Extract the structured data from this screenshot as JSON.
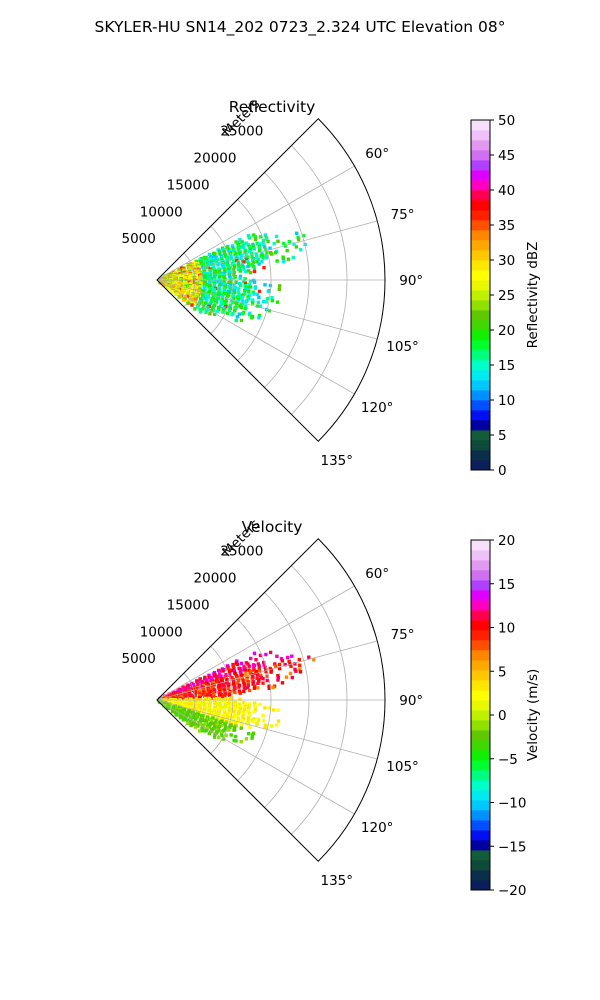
{
  "figure": {
    "suptitle": "SKYLER-HU  SN14_202  0723_2.324 UTC Elevation 08°"
  },
  "chart_data": [
    {
      "type": "heatmap",
      "projection": "polar-sector",
      "title": "Reflectivity",
      "radial_axis_label": "Meters",
      "radial_ticks": [
        "5000",
        "10000",
        "15000",
        "20000",
        "25000"
      ],
      "radial_tick_values": [
        5000,
        10000,
        15000,
        20000,
        25000
      ],
      "radial_range": [
        0,
        30000
      ],
      "angle_range_deg": [
        45,
        135
      ],
      "angle_ticks": [
        "60°",
        "75°",
        "90°",
        "105°",
        "120°",
        "135°"
      ],
      "angle_tick_values": [
        60,
        75,
        90,
        105,
        120,
        135
      ],
      "grid": true,
      "colorbar": {
        "label": "Reflectivity dBZ",
        "range": [
          0,
          50
        ],
        "ticks": [
          "0",
          "5",
          "10",
          "15",
          "20",
          "25",
          "30",
          "35",
          "40",
          "45",
          "50"
        ],
        "tick_values": [
          0,
          5,
          10,
          15,
          20,
          25,
          30,
          35,
          40,
          45,
          50
        ],
        "colors": [
          "#0a1f5c",
          "#0b2e4a",
          "#0e4a3a",
          "#125c3a",
          "#0000a0",
          "#0010f0",
          "#0050ff",
          "#0090ff",
          "#00c8ff",
          "#00eaf0",
          "#00ffc8",
          "#00ff80",
          "#00ff30",
          "#10f000",
          "#40d800",
          "#60c800",
          "#90e000",
          "#c0f000",
          "#e8f800",
          "#ffff00",
          "#ffe600",
          "#ffc800",
          "#ffa800",
          "#ff8800",
          "#ff5000",
          "#ff2000",
          "#ff0000",
          "#ff0050",
          "#ff00c0",
          "#e000ff",
          "#b040ff",
          "#d070f0",
          "#e098f0",
          "#f0c0f8",
          "#f8e0fc"
        ]
      },
      "echo_region": {
        "angle_deg": [
          62,
          127
        ],
        "range_m": [
          0,
          21500
        ],
        "dominant_values_dBZ": [
          12,
          22
        ],
        "peak_dBZ": 37
      }
    },
    {
      "type": "heatmap",
      "projection": "polar-sector",
      "title": "Velocity",
      "radial_axis_label": "Meters",
      "radial_ticks": [
        "5000",
        "10000",
        "15000",
        "20000",
        "25000"
      ],
      "radial_tick_values": [
        5000,
        10000,
        15000,
        20000,
        25000
      ],
      "radial_range": [
        0,
        30000
      ],
      "angle_range_deg": [
        45,
        135
      ],
      "angle_ticks": [
        "60°",
        "75°",
        "90°",
        "105°",
        "120°",
        "135°"
      ],
      "angle_tick_values": [
        60,
        75,
        90,
        105,
        120,
        135
      ],
      "grid": true,
      "colorbar": {
        "label": "Velocity (m/s)",
        "range": [
          -20,
          20
        ],
        "ticks": [
          "−20",
          "−15",
          "−10",
          "−5",
          "0",
          "5",
          "10",
          "15",
          "20"
        ],
        "tick_values": [
          -20,
          -15,
          -10,
          -5,
          0,
          5,
          10,
          15,
          20
        ],
        "colors": [
          "#0a1f5c",
          "#0b2e4a",
          "#0e4a3a",
          "#125c3a",
          "#0000a0",
          "#0010f0",
          "#0050ff",
          "#0090ff",
          "#00c8ff",
          "#00eaf0",
          "#00ffc8",
          "#00ff80",
          "#00ff30",
          "#10f000",
          "#40d800",
          "#60c800",
          "#90e000",
          "#c0f000",
          "#e8f800",
          "#ffff00",
          "#ffe600",
          "#ffc800",
          "#ffa800",
          "#ff8800",
          "#ff5000",
          "#ff2000",
          "#ff0000",
          "#ff0050",
          "#ff00c0",
          "#e000ff",
          "#b040ff",
          "#d070f0",
          "#e098f0",
          "#f0c0f8",
          "#f8e0fc"
        ]
      },
      "echo_region": {
        "angle_deg": [
          62,
          127
        ],
        "range_m": [
          0,
          21500
        ],
        "upper_sector_velocity_ms": 9,
        "lower_sector_velocity_ms": -3,
        "peak_velocity_ms": 14
      }
    }
  ]
}
